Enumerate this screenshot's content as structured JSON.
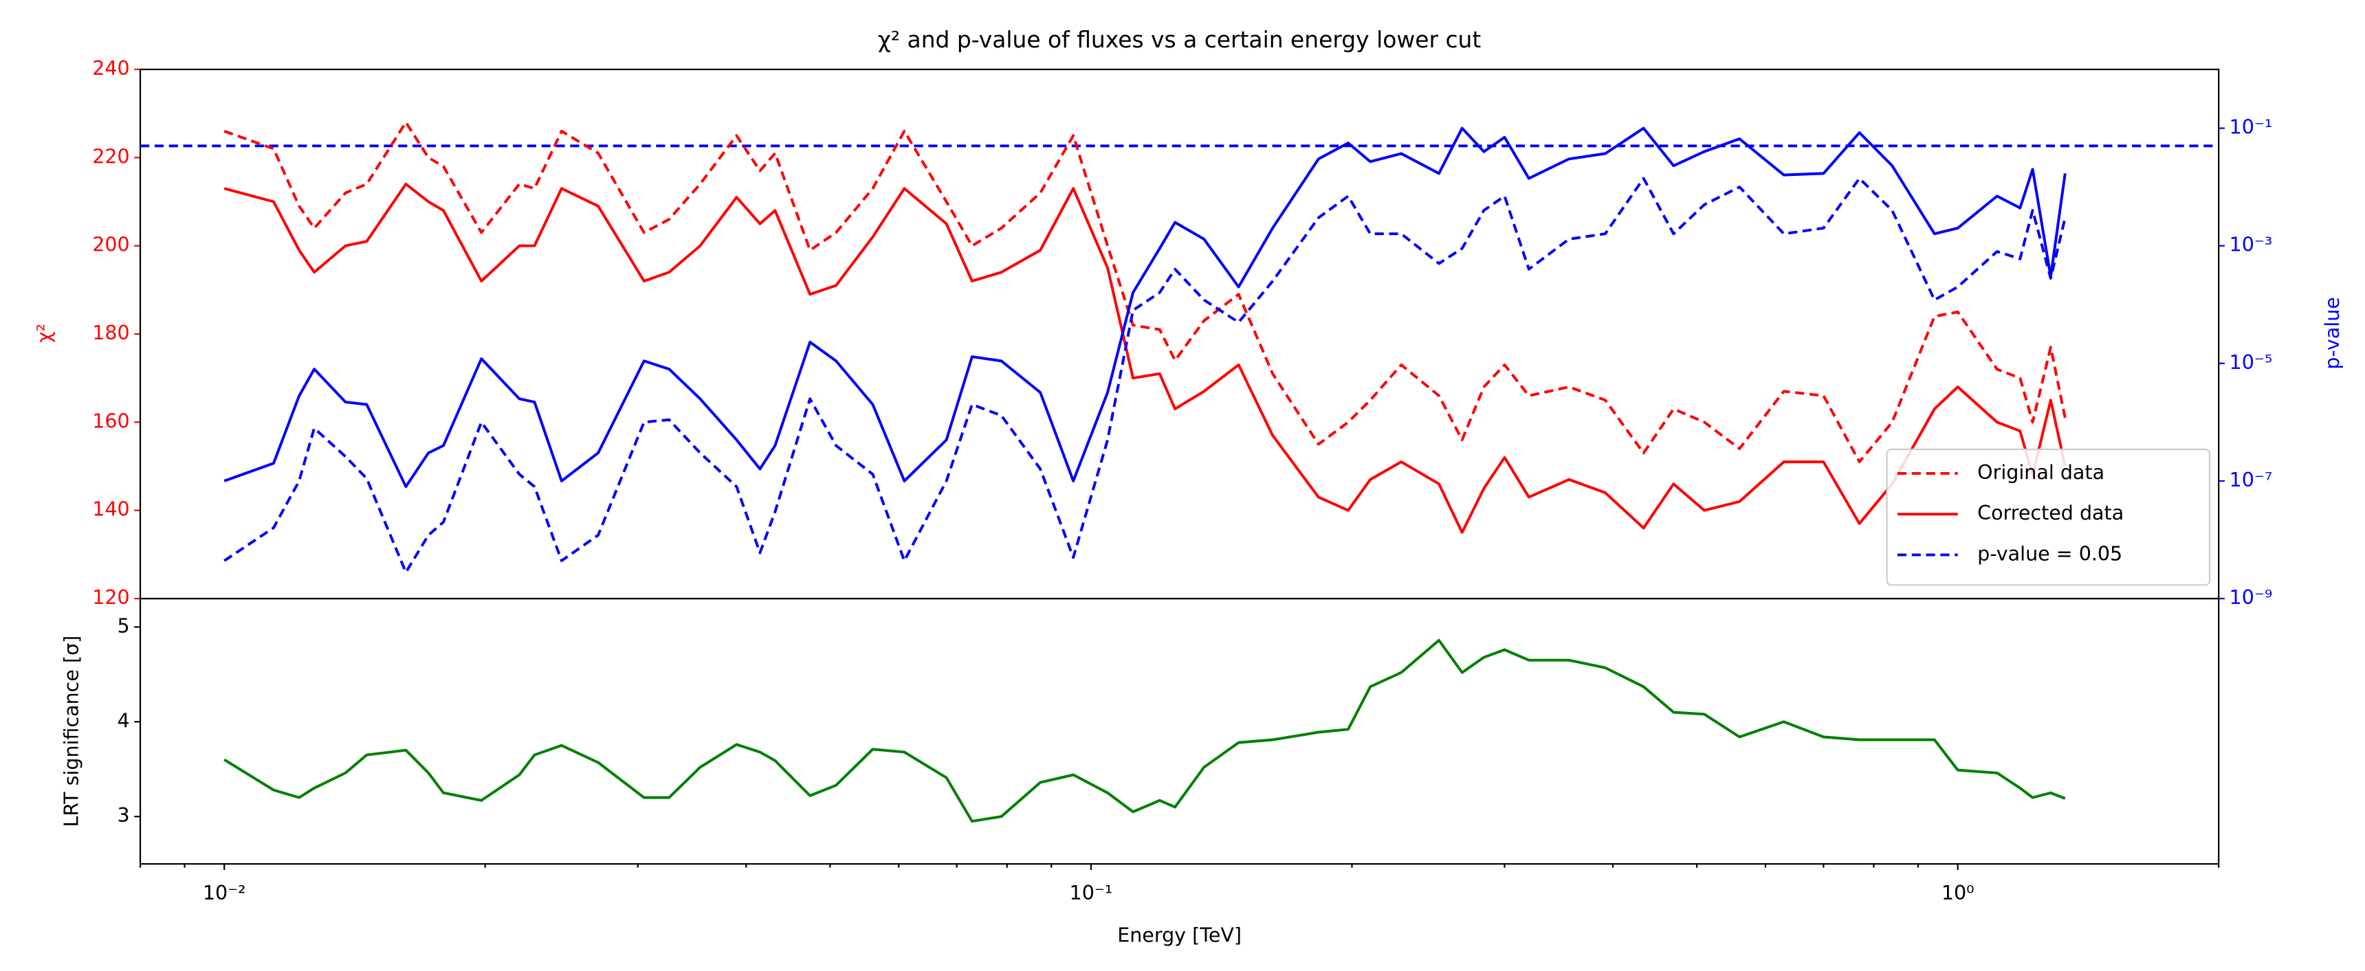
{
  "chart_data": [
    {
      "type": "line",
      "title": "χ² and p-value of fluxes vs a certain energy lower cut",
      "ylabel": "χ²",
      "y2label": "p-value",
      "ycolor": "#ff0000",
      "y2color": "#0000ff",
      "xscale": "log",
      "y2scale": "log",
      "xlim": [
        0.008,
        2
      ],
      "ylim": [
        120,
        240
      ],
      "yticks": [
        120,
        140,
        160,
        180,
        200,
        220,
        240
      ],
      "y2lim": [
        1e-09,
        1
      ],
      "y2ticks": [
        {
          "value": 1e-09,
          "label": "10⁻⁹"
        },
        {
          "value": 1e-07,
          "label": "10⁻⁷"
        },
        {
          "value": 1e-05,
          "label": "10⁻⁵"
        },
        {
          "value": 0.001,
          "label": "10⁻³"
        },
        {
          "value": 0.1,
          "label": "10⁻¹"
        }
      ],
      "x": [
        0.01,
        0.0114,
        0.0122,
        0.0127,
        0.0138,
        0.0146,
        0.0162,
        0.0172,
        0.0179,
        0.0198,
        0.0219,
        0.0228,
        0.0245,
        0.027,
        0.0305,
        0.0326,
        0.0354,
        0.039,
        0.0415,
        0.0432,
        0.0474,
        0.0508,
        0.056,
        0.0609,
        0.0681,
        0.0729,
        0.0788,
        0.0874,
        0.0954,
        0.1045,
        0.1118,
        0.12,
        0.125,
        0.135,
        0.148,
        0.162,
        0.183,
        0.198,
        0.21,
        0.228,
        0.252,
        0.268,
        0.284,
        0.3,
        0.32,
        0.356,
        0.392,
        0.434,
        0.47,
        0.51,
        0.56,
        0.63,
        0.7,
        0.77,
        0.84,
        0.94,
        1.0,
        1.11,
        1.18,
        1.22,
        1.28,
        1.33
      ],
      "series": [
        {
          "color": "#ff0000",
          "dash": true,
          "axis": "y",
          "values": [
            226,
            222,
            209,
            204,
            212,
            214,
            228,
            220,
            218,
            203,
            214,
            213,
            226,
            221,
            203,
            206,
            214,
            225,
            217,
            221,
            199,
            203,
            213,
            226,
            210,
            200,
            204,
            212,
            225,
            200,
            182,
            181,
            174,
            183,
            189,
            171,
            155,
            160,
            165,
            173,
            166,
            156,
            168,
            173,
            166,
            168,
            165,
            153,
            163,
            160,
            154,
            167,
            166,
            151,
            160,
            184,
            185,
            172,
            170,
            160,
            177,
            161
          ]
        },
        {
          "color": "#ff0000",
          "dash": false,
          "axis": "y",
          "values": [
            213,
            210,
            199,
            194,
            200,
            201,
            214,
            210,
            208,
            192,
            200,
            200,
            213,
            209,
            192,
            194,
            200,
            211,
            205,
            208,
            189,
            191,
            202,
            213,
            205,
            192,
            194,
            199,
            213,
            195,
            170,
            171,
            163,
            167,
            173,
            157,
            143,
            140,
            147,
            151,
            146,
            135,
            145,
            152,
            143,
            147,
            144,
            136,
            146,
            140,
            142,
            151,
            151,
            137,
            146,
            163,
            168,
            160,
            158,
            148,
            165,
            150
          ]
        },
        {
          "color": "#0000ff",
          "dash": true,
          "axis": "y2",
          "values": [
            4.4e-09,
            1.6e-08,
            1e-07,
            7.9e-07,
            2.6e-07,
            1.1e-07,
            2.8e-09,
            1.2e-08,
            2e-08,
            1e-06,
            1.3e-07,
            8e-08,
            4.4e-09,
            1.2e-08,
            1e-06,
            1.1e-06,
            3e-07,
            8e-08,
            6e-09,
            3e-08,
            2.5e-06,
            4e-07,
            1.3e-07,
            4.4e-09,
            1e-07,
            2e-06,
            1.3e-06,
            1.6e-07,
            5e-09,
            5e-07,
            8e-05,
            0.00016,
            0.0004,
            0.00012,
            5e-05,
            0.00025,
            0.003,
            0.007,
            0.0016,
            0.0016,
            0.0005,
            0.0009,
            0.004,
            0.007,
            0.0004,
            0.0013,
            0.0016,
            0.014,
            0.0016,
            0.005,
            0.01,
            0.0016,
            0.002,
            0.014,
            0.004,
            0.00012,
            0.0002,
            0.0008,
            0.0006,
            0.004,
            0.00028,
            0.003
          ]
        },
        {
          "color": "#0000ff",
          "dash": false,
          "axis": "y2",
          "values": [
            1e-07,
            2e-07,
            2.8e-06,
            8e-06,
            2.2e-06,
            2e-06,
            8e-08,
            3e-07,
            4e-07,
            1.2e-05,
            2.5e-06,
            2.2e-06,
            1e-07,
            3e-07,
            1.1e-05,
            8e-06,
            2.5e-06,
            5e-07,
            1.6e-07,
            4e-07,
            2.3e-05,
            1.1e-05,
            2e-06,
            1e-07,
            5e-07,
            1.3e-05,
            1.1e-05,
            3.2e-06,
            1e-07,
            3.2e-06,
            0.00016,
            0.0009,
            0.0025,
            0.0013,
            0.0002,
            0.002,
            0.03,
            0.056,
            0.027,
            0.037,
            0.017,
            0.1,
            0.04,
            0.07,
            0.014,
            0.03,
            0.037,
            0.1,
            0.023,
            0.04,
            0.066,
            0.016,
            0.017,
            0.084,
            0.023,
            0.0016,
            0.002,
            0.007,
            0.0044,
            0.02,
            0.0003,
            0.017
          ]
        }
      ],
      "hline": {
        "value": 0.05,
        "axis": "y2",
        "color": "#0000ff",
        "dash": true
      },
      "legend": {
        "loc": "lower right",
        "entries": [
          {
            "label": "Original data",
            "color": "#ff0000",
            "dash": true
          },
          {
            "label": "Corrected data",
            "color": "#ff0000",
            "dash": false
          },
          {
            "label": "p-value = 0.05",
            "color": "#0000ff",
            "dash": true
          }
        ]
      }
    },
    {
      "type": "line",
      "ylabel": "LRT significance [σ]",
      "xlabel": "Energy [TeV]",
      "xscale": "log",
      "xlim": [
        0.008,
        2
      ],
      "xticks": [
        {
          "value": 0.01,
          "label": "10⁻²"
        },
        {
          "value": 0.1,
          "label": "10⁻¹"
        },
        {
          "value": 1,
          "label": "10⁰"
        }
      ],
      "xminorticks": [
        0.008,
        0.009,
        0.02,
        0.03,
        0.04,
        0.05,
        0.06,
        0.07,
        0.08,
        0.09,
        0.2,
        0.3,
        0.4,
        0.5,
        0.6,
        0.7,
        0.8,
        0.9,
        2
      ],
      "ylim": [
        2.5,
        5.3
      ],
      "yticks": [
        3,
        4,
        5
      ],
      "x": [
        0.01,
        0.0114,
        0.0122,
        0.0127,
        0.0138,
        0.0146,
        0.0162,
        0.0172,
        0.0179,
        0.0198,
        0.0219,
        0.0228,
        0.0245,
        0.027,
        0.0305,
        0.0326,
        0.0354,
        0.039,
        0.0415,
        0.0432,
        0.0474,
        0.0508,
        0.056,
        0.0609,
        0.0681,
        0.0729,
        0.0788,
        0.0874,
        0.0954,
        0.1045,
        0.1118,
        0.12,
        0.125,
        0.135,
        0.148,
        0.162,
        0.183,
        0.198,
        0.21,
        0.228,
        0.252,
        0.268,
        0.284,
        0.3,
        0.32,
        0.356,
        0.392,
        0.434,
        0.47,
        0.51,
        0.56,
        0.63,
        0.7,
        0.77,
        0.84,
        0.94,
        1.0,
        1.11,
        1.18,
        1.22,
        1.28,
        1.33
      ],
      "series": [
        {
          "color": "#008000",
          "dash": false,
          "values": [
            3.6,
            3.28,
            3.2,
            3.3,
            3.46,
            3.65,
            3.7,
            3.46,
            3.25,
            3.17,
            3.44,
            3.65,
            3.75,
            3.57,
            3.2,
            3.2,
            3.52,
            3.76,
            3.68,
            3.59,
            3.22,
            3.33,
            3.71,
            3.68,
            3.41,
            2.95,
            3.0,
            3.36,
            3.44,
            3.25,
            3.05,
            3.17,
            3.1,
            3.52,
            3.78,
            3.81,
            3.89,
            3.92,
            4.37,
            4.52,
            4.86,
            4.52,
            4.68,
            4.76,
            4.65,
            4.65,
            4.57,
            4.37,
            4.1,
            4.08,
            3.84,
            4.0,
            3.84,
            3.81,
            3.81,
            3.81,
            3.49,
            3.46,
            3.3,
            3.2,
            3.25,
            3.19
          ]
        }
      ]
    }
  ]
}
